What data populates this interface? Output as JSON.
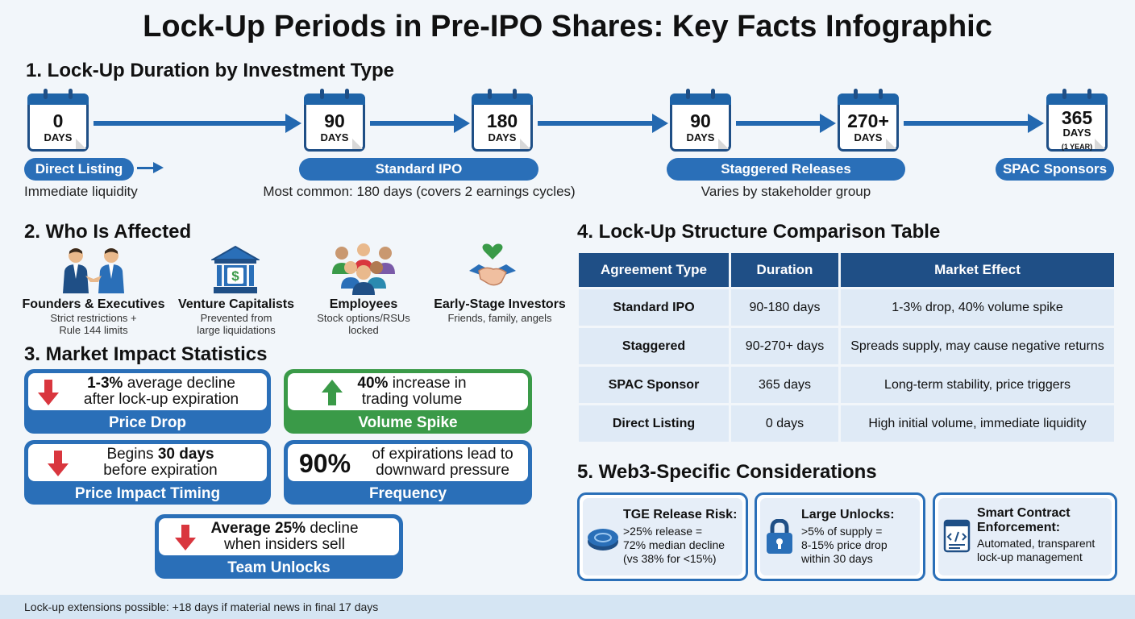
{
  "title": "Lock-Up Periods in Pre-IPO Shares: Key Facts Infographic",
  "section1": {
    "heading": "1. Lock-Up Duration by Investment Type",
    "calendars": [
      {
        "num": "0",
        "unit": "DAYS"
      },
      {
        "num": "90",
        "unit": "DAYS"
      },
      {
        "num": "180",
        "unit": "DAYS"
      },
      {
        "num": "90",
        "unit": "DAYS"
      },
      {
        "num": "270+",
        "unit": "DAYS"
      },
      {
        "num": "365",
        "unit": "DAYS",
        "extra": "(1 YEAR)"
      }
    ],
    "groups": [
      {
        "label": "Direct Listing",
        "note": "Immediate liquidity"
      },
      {
        "label": "Standard IPO",
        "note": "Most common: 180 days (covers 2 earnings cycles)"
      },
      {
        "label": "Staggered Releases",
        "note": "Varies by stakeholder group"
      },
      {
        "label": "SPAC Sponsors",
        "note": ""
      }
    ]
  },
  "section2": {
    "heading": "2. Who Is Affected",
    "items": [
      {
        "name": "Founders & Executives",
        "desc1": "Strict restrictions +",
        "desc2": "Rule 144 limits"
      },
      {
        "name": "Venture Capitalists",
        "desc1": "Prevented from",
        "desc2": "large liquidations",
        "icon_symbol": "$"
      },
      {
        "name": "Employees",
        "desc1": "Stock options/RSUs",
        "desc2": "locked"
      },
      {
        "name": "Early-Stage Investors",
        "desc1": "Friends, family, angels",
        "desc2": ""
      }
    ]
  },
  "section3": {
    "heading": "3. Market Impact Statistics",
    "stats": [
      {
        "bold": "1-3%",
        "text1": " average decline",
        "text2": "after lock-up expiration",
        "label": "Price Drop"
      },
      {
        "bold": "40%",
        "text1": " increase in",
        "text2": "trading volume",
        "label": "Volume Spike"
      },
      {
        "pre": "Begins ",
        "bold": "30 days",
        "text2": "before expiration",
        "label": "Price Impact Timing"
      },
      {
        "big": "90%",
        "text1": "of expirations lead to",
        "text2": "downward pressure",
        "label": "Frequency"
      },
      {
        "bold": "Average 25%",
        "text1": " decline",
        "text2": "when insiders sell",
        "label": "Team Unlocks"
      }
    ]
  },
  "section4": {
    "heading": "4. Lock-Up Structure Comparison Table",
    "columns": [
      "Agreement Type",
      "Duration",
      "Market Effect"
    ],
    "rows": [
      [
        "Standard IPO",
        "90-180 days",
        "1-3% drop, 40% volume spike"
      ],
      [
        "Staggered",
        "90-270+ days",
        "Spreads supply, may cause negative returns"
      ],
      [
        "SPAC Sponsor",
        "365 days",
        "Long-term stability, price triggers"
      ],
      [
        "Direct Listing",
        "0 days",
        "High initial volume, immediate liquidity"
      ]
    ]
  },
  "section5": {
    "heading": "5. Web3-Specific Considerations",
    "cards": [
      {
        "title": "TGE Release Risk:",
        "lines": [
          ">25% release =",
          "72% median decline",
          "(vs 38% for <15%)"
        ]
      },
      {
        "title": "Large Unlocks:",
        "lines": [
          ">5% of supply =",
          "8-15% price drop",
          "within 30 days"
        ]
      },
      {
        "title": "Smart Contract Enforcement:",
        "title2": "Enforcement:",
        "title1": "Smart Contract",
        "lines": [
          "Automated, transparent",
          "lock-up management"
        ]
      }
    ]
  },
  "footer": "Lock-up extensions possible: +18 days if material news in final 17 days",
  "colors": {
    "primary": "#2a6fb8",
    "dark": "#1f4f86",
    "green": "#3a9a48",
    "red": "#d9363e",
    "up_green": "#3a9a48"
  }
}
